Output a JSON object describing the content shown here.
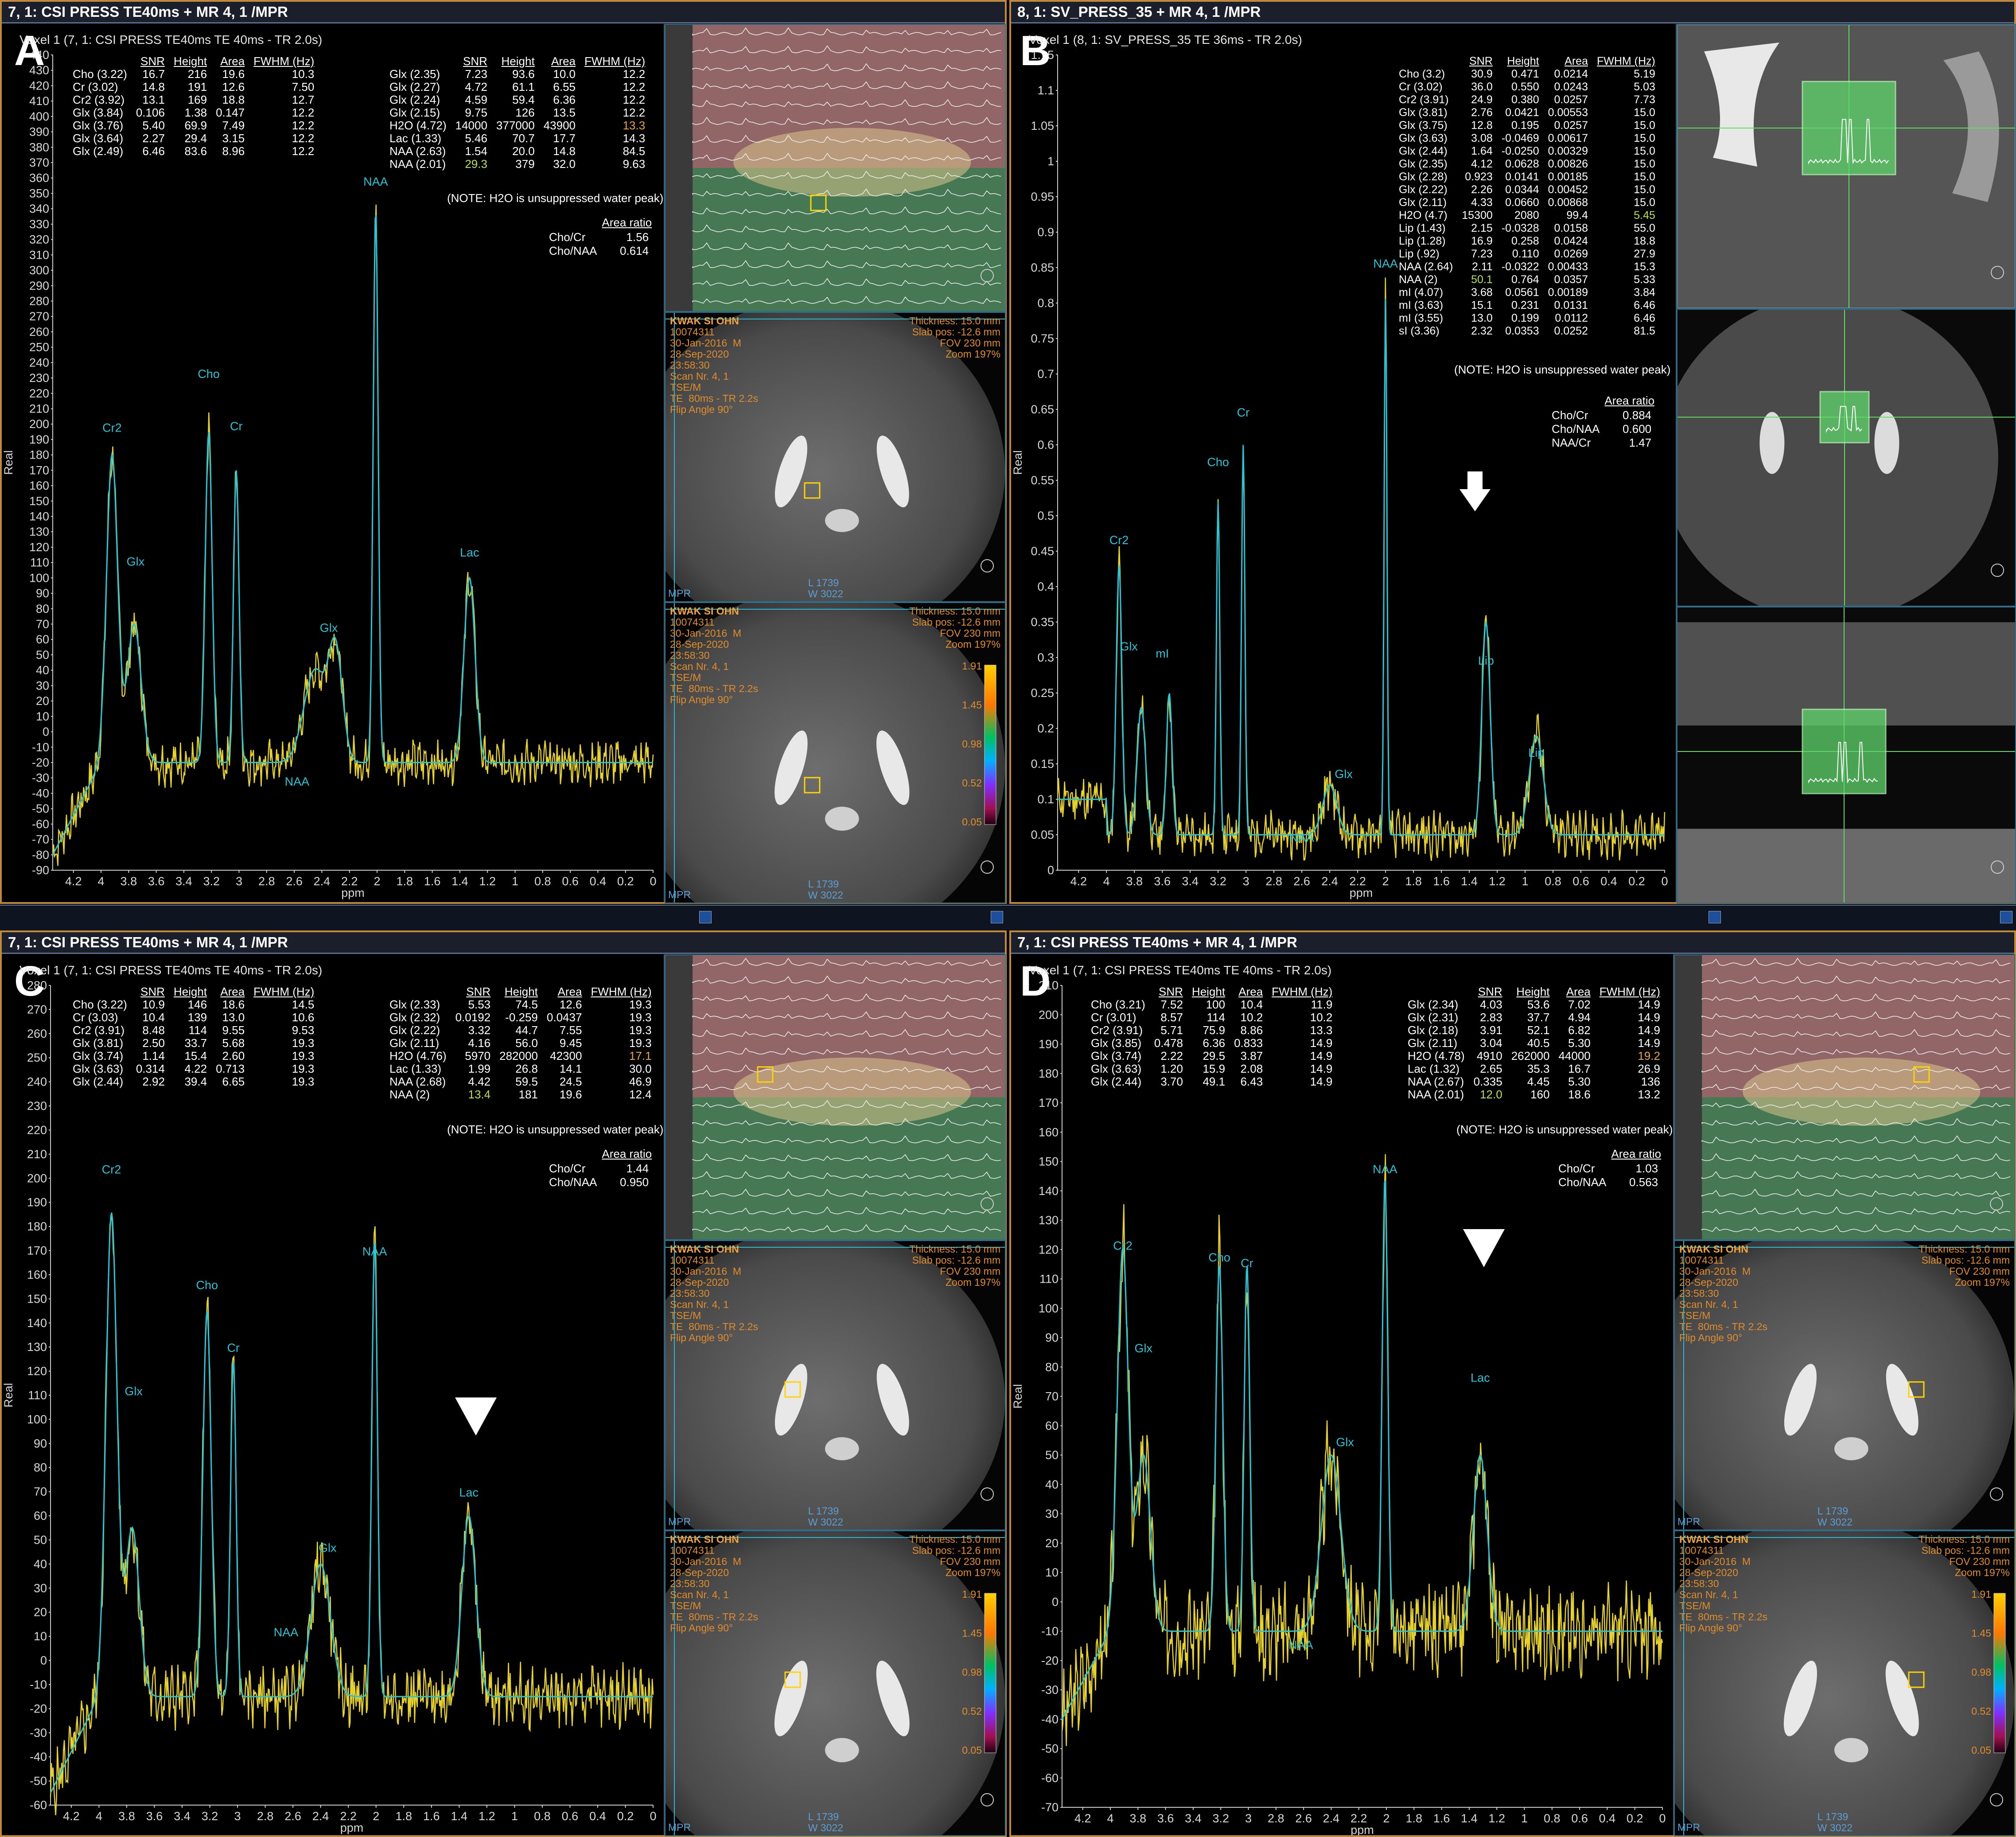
{
  "panels": {
    "A": {
      "letter": "A",
      "title": "7, 1: CSI PRESS TE40ms + MR 4, 1 /MPR",
      "subtitle": "Voxel 1 (7, 1: CSI PRESS TE40ms TE  40ms - TR 2.0s)",
      "yaxis_label": "Real",
      "xaxis_label": "ppm",
      "note": "(NOTE: H2O is unsuppressed water peak)",
      "table_left": {
        "headers": [
          "",
          "SNR",
          "Height",
          "Area",
          "FWHM (Hz)"
        ],
        "rows": [
          [
            "Cho (3.22)",
            "16.7",
            "216",
            "19.6",
            "10.3"
          ],
          [
            "Cr (3.02)",
            "14.8",
            "191",
            "12.6",
            "7.50"
          ],
          [
            "Cr2 (3.92)",
            "13.1",
            "169",
            "18.8",
            "12.7"
          ],
          [
            "Glx (3.84)",
            "0.106",
            "1.38",
            "0.147",
            "12.2"
          ],
          [
            "Glx (3.76)",
            "5.40",
            "69.9",
            "7.49",
            "12.2"
          ],
          [
            "Glx (3.64)",
            "2.27",
            "29.4",
            "3.15",
            "12.2"
          ],
          [
            "Glx (2.49)",
            "6.46",
            "83.6",
            "8.96",
            "12.2"
          ]
        ]
      },
      "table_right": {
        "headers": [
          "",
          "SNR",
          "Height",
          "Area",
          "FWHM (Hz)"
        ],
        "rows": [
          [
            "Glx (2.35)",
            "7.23",
            "93.6",
            "10.0",
            "12.2"
          ],
          [
            "Glx (2.27)",
            "4.72",
            "61.1",
            "6.55",
            "12.2"
          ],
          [
            "Glx (2.24)",
            "4.59",
            "59.4",
            "6.36",
            "12.2"
          ],
          [
            "Glx (2.15)",
            "9.75",
            "126",
            "13.5",
            "12.2"
          ],
          [
            "H2O (4.72)",
            "14000",
            "377000",
            "43900",
            "13.3"
          ],
          [
            "Lac (1.33)",
            "5.46",
            "70.7",
            "17.7",
            "14.3"
          ],
          [
            "NAA (2.63)",
            "1.54",
            "20.0",
            "14.8",
            "84.5"
          ],
          [
            "NAA (2.01)",
            "29.3",
            "379",
            "32.0",
            "9.63"
          ]
        ]
      },
      "ratio_header": "Area ratio",
      "ratios": [
        [
          "Cho/Cr",
          "1.56"
        ],
        [
          "Cho/NAA",
          "0.614"
        ]
      ],
      "y_ticks": [
        "440",
        "430",
        "420",
        "410",
        "400",
        "390",
        "380",
        "370",
        "360",
        "350",
        "340",
        "330",
        "320",
        "310",
        "300",
        "290",
        "280",
        "270",
        "260",
        "250",
        "240",
        "230",
        "220",
        "210",
        "200",
        "190",
        "180",
        "170",
        "160",
        "150",
        "140",
        "130",
        "120",
        "110",
        "100",
        "90",
        "80",
        "70",
        "60",
        "50",
        "40",
        "30",
        "20",
        "10",
        "0",
        "-10",
        "-20",
        "-30",
        "-40",
        "-50",
        "-60",
        "-70",
        "-80",
        "-90"
      ],
      "x_ticks": [
        "4.2",
        "4",
        "3.8",
        "3.6",
        "3.4",
        "3.2",
        "3",
        "2.8",
        "2.6",
        "2.4",
        "2.2",
        "2",
        "1.8",
        "1.6",
        "1.4",
        "1.2",
        "1",
        "0.8",
        "0.6",
        "0.4",
        "0.2",
        "0"
      ],
      "peak_labels": [
        "Cr2",
        "Glx",
        "Cho",
        "Cr",
        "NAA",
        "Glx",
        "NAA",
        "Lac"
      ]
    },
    "B": {
      "letter": "B",
      "title": "8, 1: SV_PRESS_35 + MR 4, 1 /MPR",
      "subtitle": "Voxel 1 (8, 1: SV_PRESS_35 TE  36ms - TR 2.0s)",
      "yaxis_label": "Real",
      "xaxis_label": "ppm",
      "note": "(NOTE: H2O is unsuppressed water peak)",
      "table": {
        "headers": [
          "",
          "SNR",
          "Height",
          "Area",
          "FWHM (Hz)"
        ],
        "rows": [
          [
            "Cho (3.2)",
            "30.9",
            "0.471",
            "0.0214",
            "5.19"
          ],
          [
            "Cr (3.02)",
            "36.0",
            "0.550",
            "0.0243",
            "5.03"
          ],
          [
            "Cr2 (3.91)",
            "24.9",
            "0.380",
            "0.0257",
            "7.73"
          ],
          [
            "Glx (3.81)",
            "2.76",
            "0.0421",
            "0.00553",
            "15.0"
          ],
          [
            "Glx (3.75)",
            "12.8",
            "0.195",
            "0.0257",
            "15.0"
          ],
          [
            "Glx (3.63)",
            "3.08",
            "-0.0469",
            "0.00617",
            "15.0"
          ],
          [
            "Glx (2.44)",
            "1.64",
            "-0.0250",
            "0.00329",
            "15.0"
          ],
          [
            "Glx (2.35)",
            "4.12",
            "0.0628",
            "0.00826",
            "15.0"
          ],
          [
            "Glx (2.28)",
            "0.923",
            "0.0141",
            "0.00185",
            "15.0"
          ],
          [
            "Glx (2.22)",
            "2.26",
            "0.0344",
            "0.00452",
            "15.0"
          ],
          [
            "Glx (2.11)",
            "4.33",
            "0.0660",
            "0.00868",
            "15.0"
          ],
          [
            "H2O (4.7)",
            "15300",
            "2080",
            "99.4",
            "5.45"
          ],
          [
            "Lip (1.43)",
            "2.15",
            "-0.0328",
            "0.0158",
            "55.0"
          ],
          [
            "Lip (1.28)",
            "16.9",
            "0.258",
            "0.0424",
            "18.8"
          ],
          [
            "Lip (.92)",
            "7.23",
            "0.110",
            "0.0269",
            "27.9"
          ],
          [
            "NAA (2.64)",
            "2.11",
            "-0.0322",
            "0.00433",
            "15.3"
          ],
          [
            "NAA (2)",
            "50.1",
            "0.764",
            "0.0357",
            "5.33"
          ],
          [
            "mI (4.07)",
            "3.68",
            "0.0561",
            "0.00189",
            "3.84"
          ],
          [
            "mI (3.63)",
            "15.1",
            "0.231",
            "0.0131",
            "6.46"
          ],
          [
            "mI (3.55)",
            "13.0",
            "0.199",
            "0.0112",
            "6.46"
          ],
          [
            "sI (3.36)",
            "2.32",
            "0.0353",
            "0.0252",
            "81.5"
          ]
        ]
      },
      "ratio_header": "Area ratio",
      "ratios": [
        [
          "Cho/Cr",
          "0.884"
        ],
        [
          "Cho/NAA",
          "0.600"
        ],
        [
          "NAA/Cr",
          "1.47"
        ]
      ],
      "y_ticks": [
        "1.15",
        "1.1",
        "1.05",
        "1",
        "0.95",
        "0.9",
        "0.85",
        "0.8",
        "0.75",
        "0.7",
        "0.65",
        "0.6",
        "0.55",
        "0.5",
        "0.45",
        "0.4",
        "0.35",
        "0.3",
        "0.25",
        "0.2",
        "0.15",
        "0.1",
        "0.05",
        "0"
      ],
      "x_ticks": [
        "4.2",
        "4",
        "3.8",
        "3.6",
        "3.4",
        "3.2",
        "3",
        "2.8",
        "2.6",
        "2.4",
        "2.2",
        "2",
        "1.8",
        "1.6",
        "1.4",
        "1.2",
        "1",
        "0.8",
        "0.6",
        "0.4",
        "0.2",
        "0"
      ],
      "peak_labels": [
        "Cr2",
        "Glx",
        "mI",
        "Cho",
        "Cr",
        "Glx",
        "NAA",
        "NAA",
        "Lip",
        "Lip"
      ]
    },
    "C": {
      "letter": "C",
      "title": "7, 1: CSI PRESS TE40ms + MR 4, 1 /MPR",
      "subtitle": "Voxel 1 (7, 1: CSI PRESS TE40ms TE  40ms - TR 2.0s)",
      "yaxis_label": "Real",
      "xaxis_label": "ppm",
      "note": "(NOTE: H2O is unsuppressed water peak)",
      "table_left": {
        "headers": [
          "",
          "SNR",
          "Height",
          "Area",
          "FWHM (Hz)"
        ],
        "rows": [
          [
            "Cho (3.22)",
            "10.9",
            "146",
            "18.6",
            "14.5"
          ],
          [
            "Cr (3.03)",
            "10.4",
            "139",
            "13.0",
            "10.6"
          ],
          [
            "Cr2 (3.91)",
            "8.48",
            "114",
            "9.55",
            "9.53"
          ],
          [
            "Glx (3.81)",
            "2.50",
            "33.7",
            "5.68",
            "19.3"
          ],
          [
            "Glx (3.74)",
            "1.14",
            "15.4",
            "2.60",
            "19.3"
          ],
          [
            "Glx (3.63)",
            "0.314",
            "4.22",
            "0.713",
            "19.3"
          ],
          [
            "Glx (2.44)",
            "2.92",
            "39.4",
            "6.65",
            "19.3"
          ]
        ]
      },
      "table_right": {
        "headers": [
          "",
          "SNR",
          "Height",
          "Area",
          "FWHM (Hz)"
        ],
        "rows": [
          [
            "Glx (2.33)",
            "5.53",
            "74.5",
            "12.6",
            "19.3"
          ],
          [
            "Glx (2.32)",
            "0.0192",
            "-0.259",
            "0.0437",
            "19.3"
          ],
          [
            "Glx (2.22)",
            "3.32",
            "44.7",
            "7.55",
            "19.3"
          ],
          [
            "Glx (2.11)",
            "4.16",
            "56.0",
            "9.45",
            "19.3"
          ],
          [
            "H2O (4.76)",
            "5970",
            "282000",
            "42300",
            "17.1"
          ],
          [
            "Lac (1.33)",
            "1.99",
            "26.8",
            "14.1",
            "30.0"
          ],
          [
            "NAA (2.68)",
            "4.42",
            "59.5",
            "24.5",
            "46.9"
          ],
          [
            "NAA (2)",
            "13.4",
            "181",
            "19.6",
            "12.4"
          ]
        ]
      },
      "ratio_header": "Area ratio",
      "ratios": [
        [
          "Cho/Cr",
          "1.44"
        ],
        [
          "Cho/NAA",
          "0.950"
        ]
      ],
      "y_ticks": [
        "280",
        "270",
        "260",
        "250",
        "240",
        "230",
        "220",
        "210",
        "200",
        "190",
        "180",
        "170",
        "160",
        "150",
        "140",
        "130",
        "120",
        "110",
        "100",
        "90",
        "80",
        "70",
        "60",
        "50",
        "40",
        "30",
        "20",
        "10",
        "0",
        "-10",
        "-20",
        "-30",
        "-40",
        "-50",
        "-60"
      ],
      "x_ticks": [
        "4.2",
        "4",
        "3.8",
        "3.6",
        "3.4",
        "3.2",
        "3",
        "2.8",
        "2.6",
        "2.4",
        "2.2",
        "2",
        "1.8",
        "1.6",
        "1.4",
        "1.2",
        "1",
        "0.8",
        "0.6",
        "0.4",
        "0.2",
        "0"
      ],
      "peak_labels": [
        "Cr2",
        "Glx",
        "Cho",
        "Cr",
        "NAA",
        "Glx",
        "NAA",
        "Lac"
      ]
    },
    "D": {
      "letter": "D",
      "title": "7, 1: CSI PRESS TE40ms + MR 4, 1 /MPR",
      "subtitle": "Voxel 1 (7, 1: CSI PRESS TE40ms TE  40ms - TR 2.0s)",
      "yaxis_label": "Real",
      "xaxis_label": "ppm",
      "note": "(NOTE: H2O is unsuppressed water peak)",
      "table_left": {
        "headers": [
          "",
          "SNR",
          "Height",
          "Area",
          "FWHM (Hz)"
        ],
        "rows": [
          [
            "Cho (3.21)",
            "7.52",
            "100",
            "10.4",
            "11.9"
          ],
          [
            "Cr (3.01)",
            "8.57",
            "114",
            "10.2",
            "10.2"
          ],
          [
            "Cr2 (3.91)",
            "5.71",
            "75.9",
            "8.86",
            "13.3"
          ],
          [
            "Glx (3.85)",
            "0.478",
            "6.36",
            "0.833",
            "14.9"
          ],
          [
            "Glx (3.74)",
            "2.22",
            "29.5",
            "3.87",
            "14.9"
          ],
          [
            "Glx (3.63)",
            "1.20",
            "15.9",
            "2.08",
            "14.9"
          ],
          [
            "Glx (2.44)",
            "3.70",
            "49.1",
            "6.43",
            "14.9"
          ]
        ]
      },
      "table_right": {
        "headers": [
          "",
          "SNR",
          "Height",
          "Area",
          "FWHM (Hz)"
        ],
        "rows": [
          [
            "Glx (2.34)",
            "4.03",
            "53.6",
            "7.02",
            "14.9"
          ],
          [
            "Glx (2.31)",
            "2.83",
            "37.7",
            "4.94",
            "14.9"
          ],
          [
            "Glx (2.18)",
            "3.91",
            "52.1",
            "6.82",
            "14.9"
          ],
          [
            "Glx (2.11)",
            "3.04",
            "40.5",
            "5.30",
            "14.9"
          ],
          [
            "H2O (4.78)",
            "4910",
            "262000",
            "44000",
            "19.2"
          ],
          [
            "Lac (1.32)",
            "2.65",
            "35.3",
            "16.7",
            "26.9"
          ],
          [
            "NAA (2.67)",
            "0.335",
            "4.45",
            "5.30",
            "136"
          ],
          [
            "NAA (2.01)",
            "12.0",
            "160",
            "18.6",
            "13.2"
          ]
        ]
      },
      "ratio_header": "Area ratio",
      "ratios": [
        [
          "Cho/Cr",
          "1.03"
        ],
        [
          "Cho/NAA",
          "0.563"
        ]
      ],
      "y_ticks": [
        "210",
        "200",
        "190",
        "180",
        "170",
        "160",
        "150",
        "140",
        "130",
        "120",
        "110",
        "100",
        "90",
        "80",
        "70",
        "60",
        "50",
        "40",
        "30",
        "20",
        "10",
        "0",
        "-10",
        "-20",
        "-30",
        "-40",
        "-50",
        "-60",
        "-70"
      ],
      "x_ticks": [
        "4.2",
        "4",
        "3.8",
        "3.6",
        "3.4",
        "3.2",
        "3",
        "2.8",
        "2.6",
        "2.4",
        "2.2",
        "2",
        "1.8",
        "1.6",
        "1.4",
        "1.2",
        "1",
        "0.8",
        "0.6",
        "0.4",
        "0.2",
        "0"
      ],
      "peak_labels": [
        "Cr2",
        "Glx",
        "Cho",
        "Cr",
        "NAA",
        "Glx",
        "NAA",
        "Lac"
      ]
    }
  },
  "mri_info": {
    "name": "KWAK SI OHN",
    "id": "10074311",
    "dob": "30-Jan-2016  M",
    "date": "28-Sep-2020",
    "time": "23:58:30",
    "scan": "Scan Nr. 4, 1",
    "seq": "TSE/M",
    "te_tr": "TE  80ms - TR 2.2s",
    "flip": "Flip Angle 90°",
    "thickness": "Thickness: 15.0 mm",
    "slab": "Slab pos: -12.6 mm",
    "fov": "FOV 230 mm",
    "zoom": "Zoom 197%",
    "level": "L 1739",
    "window": "W 3022",
    "mpr": "MPR",
    "scale": [
      "1.91",
      "1.45",
      "0.98",
      "0.52",
      "0.05"
    ]
  },
  "colors": {
    "panel_border": "#c08a3a",
    "fit_line": "#29c4d6",
    "data_line": "#e6d22a",
    "voxel_box": "#ffd400",
    "sv_box": "#7cff7c"
  }
}
